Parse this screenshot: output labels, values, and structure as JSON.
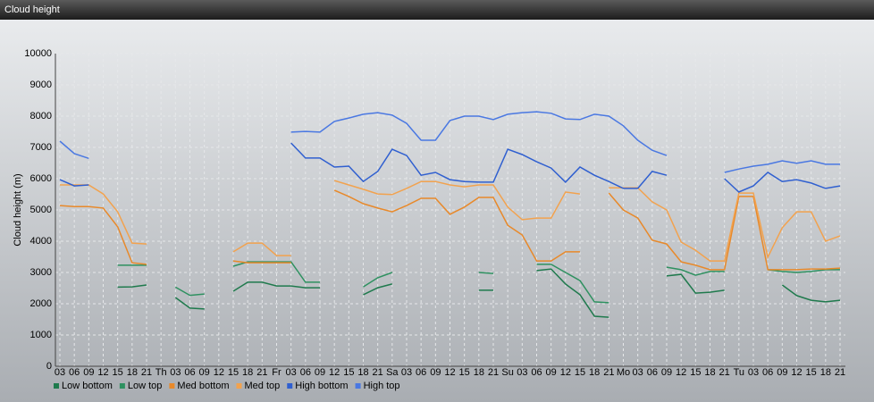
{
  "chart_data": {
    "type": "line",
    "title": "Cloud height",
    "y_label": "Cloud height (m)",
    "categories": [
      "03",
      "06",
      "09",
      "12",
      "15",
      "18",
      "21",
      "Th",
      "03",
      "06",
      "09",
      "12",
      "15",
      "18",
      "21",
      "Fr",
      "03",
      "06",
      "09",
      "12",
      "15",
      "18",
      "21",
      "Sa",
      "03",
      "06",
      "09",
      "12",
      "15",
      "18",
      "21",
      "Su",
      "03",
      "06",
      "09",
      "12",
      "15",
      "18",
      "21",
      "Mo",
      "03",
      "06",
      "09",
      "12",
      "15",
      "18",
      "21",
      "Tu",
      "03",
      "06",
      "09",
      "12",
      "15",
      "18",
      "21"
    ],
    "ylim": [
      0,
      10000
    ],
    "yticks": [
      0,
      1000,
      2000,
      3000,
      4000,
      5000,
      6000,
      7000,
      8000,
      9000,
      10000
    ],
    "grid": true,
    "legend": "bottom",
    "series": [
      {
        "name": "Low bottom",
        "color": "#1f7a4d",
        "values": [
          null,
          null,
          null,
          null,
          2530,
          2540,
          2600,
          null,
          2200,
          1860,
          1830,
          null,
          2400,
          2690,
          2690,
          2570,
          2570,
          2510,
          2510,
          null,
          null,
          2290,
          2510,
          2630,
          null,
          null,
          null,
          null,
          null,
          2430,
          2430,
          null,
          null,
          3060,
          3110,
          2630,
          2290,
          1600,
          1570,
          null,
          null,
          null,
          2890,
          2940,
          2340,
          2370,
          2430,
          null,
          null,
          null,
          2600,
          2260,
          2110,
          2060,
          2110
        ]
      },
      {
        "name": "Low top",
        "color": "#2e9160",
        "values": [
          null,
          null,
          null,
          null,
          3230,
          3230,
          3230,
          null,
          2530,
          2270,
          2310,
          null,
          3200,
          3340,
          3340,
          3340,
          3340,
          2690,
          2690,
          null,
          null,
          2540,
          2830,
          3000,
          null,
          null,
          null,
          null,
          null,
          3000,
          2970,
          null,
          null,
          3260,
          3260,
          3000,
          2740,
          2060,
          2030,
          null,
          null,
          null,
          3170,
          3090,
          2910,
          3030,
          3030,
          null,
          null,
          3090,
          3030,
          3000,
          3030,
          3090,
          3090
        ]
      },
      {
        "name": "Med bottom",
        "color": "#e8892a",
        "values": [
          5140,
          5110,
          5110,
          5060,
          4460,
          3310,
          3260,
          null,
          null,
          null,
          null,
          null,
          3370,
          3310,
          3310,
          3310,
          3310,
          null,
          null,
          5630,
          5430,
          5200,
          5060,
          4940,
          5140,
          5370,
          5370,
          4860,
          5090,
          5400,
          5400,
          4510,
          4200,
          3370,
          3370,
          3660,
          3660,
          null,
          5540,
          5000,
          4740,
          4030,
          3910,
          3340,
          3230,
          3090,
          3090,
          5430,
          5430,
          3090,
          3090,
          3090,
          3110,
          3110,
          3140
        ]
      },
      {
        "name": "Med top",
        "color": "#f2a24e",
        "values": [
          5800,
          5800,
          5800,
          5510,
          4940,
          3940,
          3910,
          null,
          null,
          null,
          null,
          null,
          3660,
          3940,
          3940,
          3540,
          3540,
          null,
          null,
          5940,
          5800,
          5660,
          5510,
          5490,
          5690,
          5910,
          5910,
          5800,
          5740,
          5800,
          5800,
          5090,
          4690,
          4740,
          4740,
          5570,
          5510,
          null,
          5710,
          5710,
          5710,
          5260,
          5000,
          3970,
          3710,
          3370,
          3370,
          5540,
          5540,
          3490,
          4430,
          4940,
          4940,
          4000,
          4170
        ]
      },
      {
        "name": "High bottom",
        "color": "#2f5fd0",
        "values": [
          5970,
          5770,
          5800,
          null,
          null,
          null,
          null,
          null,
          null,
          null,
          null,
          null,
          null,
          null,
          null,
          null,
          7140,
          6660,
          6660,
          6370,
          6400,
          5910,
          6230,
          6940,
          6740,
          6110,
          6200,
          5970,
          5910,
          5890,
          5890,
          6940,
          6770,
          6540,
          6340,
          5890,
          6370,
          6110,
          5910,
          5690,
          5690,
          6230,
          6110,
          null,
          null,
          null,
          6000,
          5570,
          5770,
          6200,
          5910,
          5970,
          5860,
          5690,
          5770
        ]
      },
      {
        "name": "High top",
        "color": "#4a78e2",
        "values": [
          7200,
          6800,
          6650,
          null,
          null,
          null,
          null,
          null,
          null,
          null,
          null,
          null,
          null,
          null,
          null,
          null,
          7490,
          7510,
          7490,
          7830,
          7940,
          8060,
          8110,
          8030,
          7770,
          7230,
          7230,
          7860,
          8000,
          8000,
          7890,
          8060,
          8110,
          8140,
          8090,
          7910,
          7890,
          8060,
          8000,
          7690,
          7230,
          6910,
          6740,
          null,
          null,
          null,
          6200,
          6310,
          6400,
          6460,
          6570,
          6490,
          6570,
          6460,
          6460
        ]
      }
    ]
  }
}
